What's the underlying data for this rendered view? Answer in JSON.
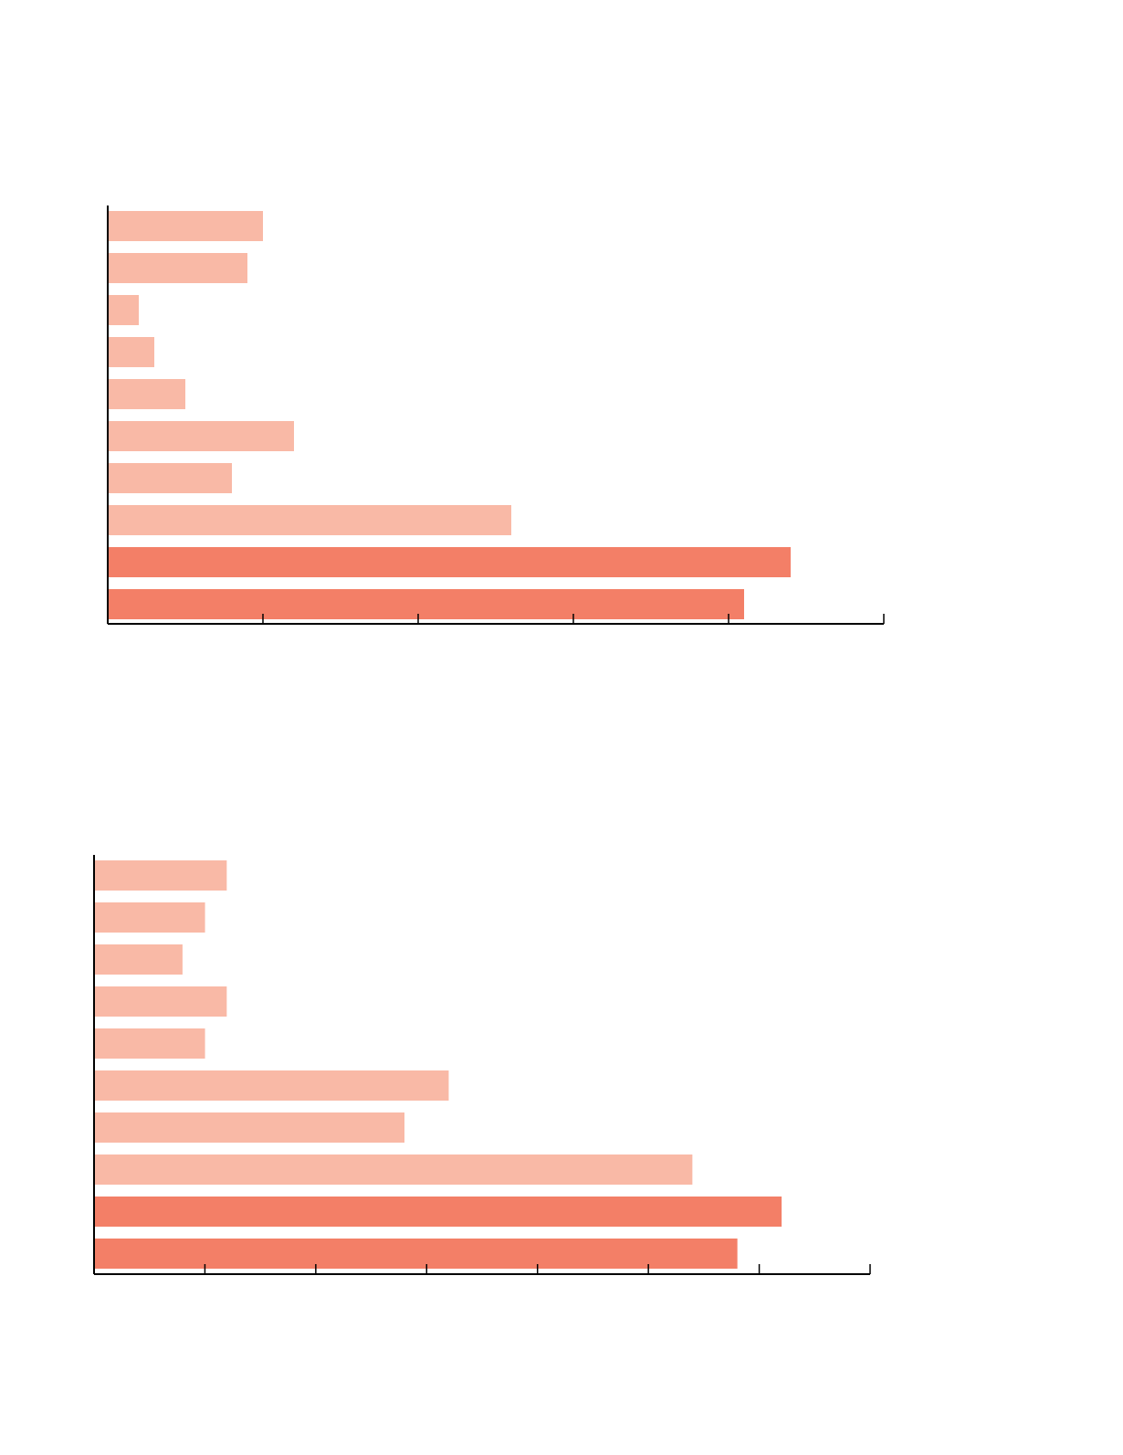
{
  "colors": {
    "light_bar": "#f9b9a6",
    "dark_bar": "#f37f67",
    "axis": "#000000"
  },
  "chart_data": [
    {
      "type": "bar",
      "orientation": "horizontal",
      "title": "",
      "xlabel": "",
      "ylabel": "",
      "xlim": [
        0,
        1
      ],
      "tick_labels_shown": false,
      "grid": false,
      "legend": "none",
      "values": [
        0.2,
        0.18,
        0.04,
        0.06,
        0.1,
        0.24,
        0.16,
        0.52,
        0.88,
        0.82
      ],
      "highlight": [
        false,
        false,
        false,
        false,
        false,
        false,
        false,
        false,
        true,
        true
      ]
    },
    {
      "type": "bar",
      "orientation": "horizontal",
      "title": "",
      "xlabel": "",
      "ylabel": "",
      "xlim": [
        0,
        1
      ],
      "tick_labels_shown": false,
      "grid": false,
      "legend": "none",
      "values": [
        0.171,
        0.143,
        0.114,
        0.171,
        0.143,
        0.457,
        0.4,
        0.771,
        0.886,
        0.829
      ],
      "highlight": [
        false,
        false,
        false,
        false,
        false,
        false,
        false,
        false,
        true,
        true
      ]
    }
  ]
}
